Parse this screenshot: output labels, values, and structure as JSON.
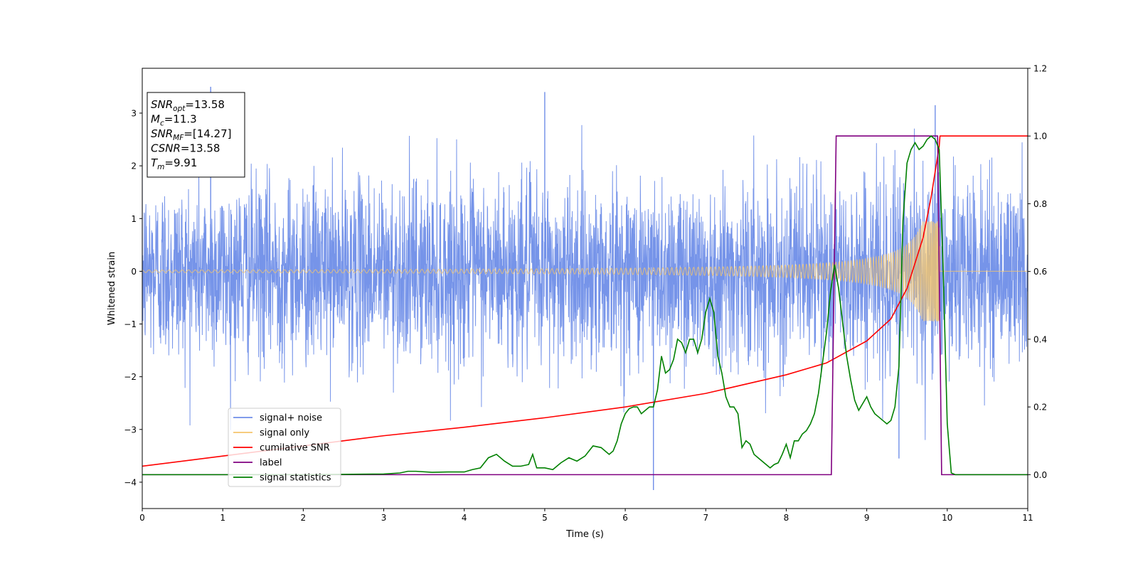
{
  "chart_data": {
    "type": "line",
    "xlabel": "Time (s)",
    "ylabel": "Whitened strain",
    "xlim": [
      0,
      11
    ],
    "ylim": [
      -4.5,
      3.85
    ],
    "y2lim": [
      -0.1,
      1.2
    ],
    "xticks": [
      "0",
      "1",
      "2",
      "3",
      "4",
      "5",
      "6",
      "7",
      "8",
      "9",
      "10",
      "11"
    ],
    "yticks": [
      "−4",
      "−3",
      "−2",
      "−1",
      "0",
      "1",
      "2",
      "3"
    ],
    "y2ticks": [
      "0.0",
      "0.2",
      "0.4",
      "0.6",
      "0.8",
      "1.0",
      "1.2"
    ],
    "annotation": {
      "lines": [
        {
          "main": "SNR",
          "sub": "opt",
          "rest": "=13.58"
        },
        {
          "main": "M",
          "sub": "c",
          "rest": "=11.3"
        },
        {
          "main": "SNR",
          "sub": "MF",
          "rest": "=[14.27]"
        },
        {
          "main": "CSNR",
          "sub": "",
          "rest": "=13.58"
        },
        {
          "main": "T",
          "sub": "m",
          "rest": "=9.91"
        }
      ]
    },
    "legend": {
      "position": "lower-left",
      "items": [
        {
          "label": "signal+ noise",
          "color": "#6f8ee8"
        },
        {
          "label": "signal only",
          "color": "#f5c56b"
        },
        {
          "label": "cumilative SNR",
          "color": "#ff0000"
        },
        {
          "label": "label",
          "color": "#800080"
        },
        {
          "label": "signal statistics",
          "color": "#008000"
        }
      ]
    },
    "series": [
      {
        "name": "signal+ noise",
        "axis": "left",
        "color": "#6f8ee8",
        "description": "white noise plus chirp, sigma about 0.85",
        "visible_extremes": [
          {
            "x": 0.85,
            "y": 3.5
          },
          {
            "x": 5.0,
            "y": 3.4
          },
          {
            "x": 6.35,
            "y": -4.15
          },
          {
            "x": 9.4,
            "y": -3.55
          },
          {
            "x": 9.85,
            "y": 3.15
          }
        ]
      },
      {
        "name": "signal only",
        "axis": "left",
        "color": "#f5c56b",
        "chirp": {
          "t_merger": 9.91,
          "envelope_at_start": 0.025,
          "envelope_near_merger": 0.95,
          "freq_start_hz": 12
        }
      },
      {
        "name": "cumilative SNR",
        "axis": "right",
        "x": [
          0,
          1,
          2,
          3,
          4,
          5,
          6,
          7,
          8,
          8.5,
          9,
          9.3,
          9.5,
          9.7,
          9.8,
          9.9,
          9.91,
          10,
          11
        ],
        "y": [
          0.025,
          0.055,
          0.085,
          0.115,
          0.14,
          0.168,
          0.2,
          0.24,
          0.295,
          0.33,
          0.395,
          0.46,
          0.55,
          0.7,
          0.82,
          0.97,
          1.0,
          1.0,
          1.0
        ]
      },
      {
        "name": "label",
        "axis": "right",
        "x": [
          0,
          8.56,
          8.62,
          9.88,
          9.93,
          11
        ],
        "y": [
          0,
          0,
          1,
          1,
          0,
          0
        ]
      },
      {
        "name": "signal statistics",
        "axis": "right",
        "x": [
          0,
          0.5,
          1,
          1.5,
          2,
          2.5,
          3,
          3.2,
          3.3,
          3.4,
          3.6,
          3.8,
          4.0,
          4.1,
          4.2,
          4.3,
          4.4,
          4.5,
          4.6,
          4.7,
          4.8,
          4.85,
          4.9,
          5.0,
          5.1,
          5.2,
          5.3,
          5.4,
          5.5,
          5.6,
          5.7,
          5.8,
          5.85,
          5.9,
          5.95,
          6.0,
          6.05,
          6.1,
          6.15,
          6.2,
          6.25,
          6.3,
          6.35,
          6.4,
          6.45,
          6.5,
          6.55,
          6.6,
          6.65,
          6.7,
          6.75,
          6.8,
          6.85,
          6.9,
          6.95,
          7.0,
          7.05,
          7.1,
          7.15,
          7.2,
          7.25,
          7.3,
          7.35,
          7.4,
          7.45,
          7.5,
          7.55,
          7.6,
          7.65,
          7.7,
          7.75,
          7.8,
          7.85,
          7.9,
          7.95,
          8.0,
          8.05,
          8.1,
          8.15,
          8.2,
          8.25,
          8.3,
          8.35,
          8.4,
          8.45,
          8.5,
          8.55,
          8.6,
          8.65,
          8.7,
          8.75,
          8.8,
          8.85,
          8.9,
          8.95,
          9.0,
          9.05,
          9.1,
          9.15,
          9.2,
          9.25,
          9.3,
          9.35,
          9.4,
          9.45,
          9.5,
          9.55,
          9.6,
          9.65,
          9.7,
          9.75,
          9.8,
          9.85,
          9.9,
          9.95,
          10.0,
          10.05,
          10.1,
          10.2,
          11
        ],
        "y": [
          0,
          0,
          0,
          0,
          0,
          0.001,
          0.002,
          0.005,
          0.01,
          0.01,
          0.007,
          0.008,
          0.008,
          0.015,
          0.02,
          0.05,
          0.06,
          0.04,
          0.025,
          0.025,
          0.03,
          0.06,
          0.02,
          0.02,
          0.015,
          0.035,
          0.05,
          0.04,
          0.055,
          0.085,
          0.08,
          0.06,
          0.07,
          0.1,
          0.15,
          0.18,
          0.195,
          0.2,
          0.2,
          0.18,
          0.19,
          0.2,
          0.2,
          0.25,
          0.35,
          0.3,
          0.31,
          0.34,
          0.4,
          0.39,
          0.36,
          0.4,
          0.4,
          0.36,
          0.4,
          0.48,
          0.52,
          0.48,
          0.35,
          0.3,
          0.23,
          0.2,
          0.2,
          0.18,
          0.08,
          0.1,
          0.09,
          0.06,
          0.05,
          0.04,
          0.03,
          0.02,
          0.03,
          0.035,
          0.06,
          0.09,
          0.05,
          0.1,
          0.1,
          0.12,
          0.13,
          0.15,
          0.18,
          0.24,
          0.33,
          0.42,
          0.54,
          0.62,
          0.55,
          0.45,
          0.35,
          0.28,
          0.22,
          0.19,
          0.21,
          0.23,
          0.2,
          0.18,
          0.17,
          0.16,
          0.15,
          0.16,
          0.2,
          0.32,
          0.75,
          0.92,
          0.96,
          0.98,
          0.96,
          0.97,
          0.99,
          1.0,
          0.99,
          0.96,
          0.6,
          0.15,
          0.005,
          0.0,
          0.0,
          0.0
        ]
      }
    ]
  }
}
